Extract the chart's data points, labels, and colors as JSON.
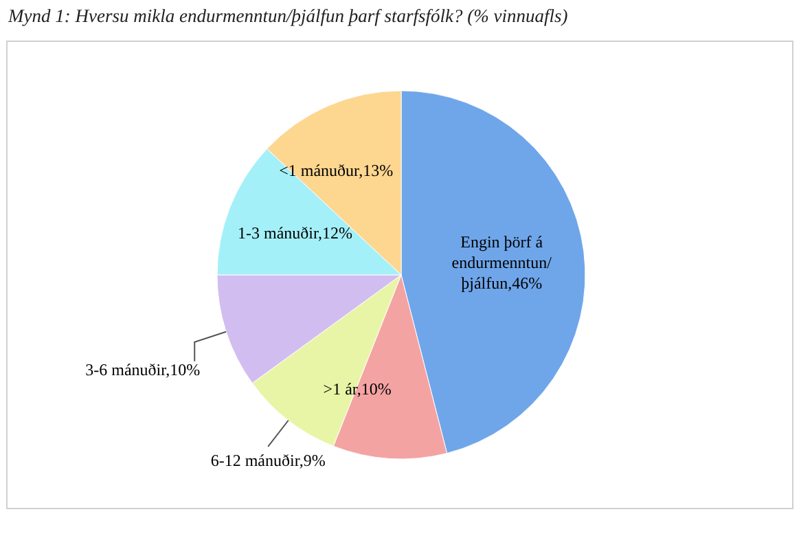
{
  "chart_data": {
    "type": "pie",
    "title": "Mynd 1: Hversu mikla endurmenntun/þjálfun þarf starfsfólk? (% vinnuafls)",
    "categories": [
      "Engin þörf á endurmenntun/þjálfun",
      ">1 ár",
      "6-12 mánuðir",
      "3-6 mánuðir",
      "1-3 mánuðir",
      "<1 mánuður"
    ],
    "values": [
      46,
      10,
      9,
      10,
      12,
      13
    ],
    "value_labels": [
      "46%",
      "10%",
      "9%",
      "10%",
      "12%",
      "13%"
    ],
    "colors": [
      "#6fa6ea",
      "#f4a3a3",
      "#e8f5a6",
      "#d2bdf0",
      "#a4f0f8",
      "#fdd690"
    ]
  }
}
